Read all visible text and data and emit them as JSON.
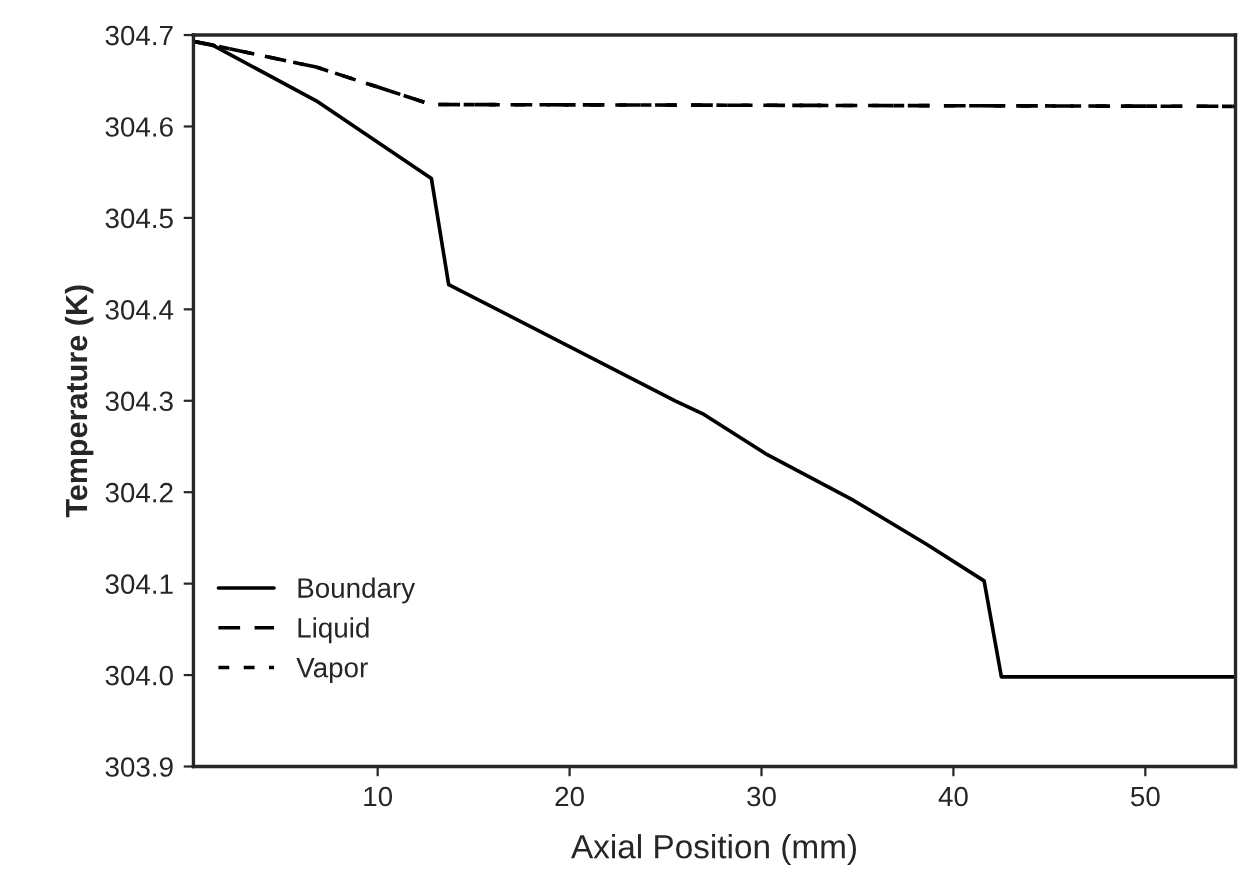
{
  "chart_data": {
    "type": "line",
    "xlabel": "Axial Position (mm)",
    "ylabel": "Temperature (K)",
    "xlim": [
      0.4,
      54.7
    ],
    "xticks": [
      10,
      20,
      30,
      40,
      50
    ],
    "ylim": [
      303.9,
      304.7
    ],
    "yticks": [
      {
        "value": 303.9,
        "label": "303.9"
      },
      {
        "value": 304.0,
        "label": "304.0"
      },
      {
        "value": 304.1,
        "label": "304.1"
      },
      {
        "value": 304.2,
        "label": "304.2"
      },
      {
        "value": 304.3,
        "label": "304.3"
      },
      {
        "value": 304.4,
        "label": "304.4"
      },
      {
        "value": 304.5,
        "label": "304.5"
      },
      {
        "value": 304.6,
        "label": "304.6"
      },
      {
        "value": 304.7,
        "label": "304.7"
      }
    ],
    "grid": false,
    "legend": "bottom left",
    "marker": "none",
    "series": [
      {
        "name": "Boundary",
        "color": "#000000",
        "line_style": "solid",
        "x": [
          0.44,
          1.4,
          6.8,
          12.8,
          13.7,
          25.5,
          27.0,
          30.3,
          34.8,
          38.6,
          41.6,
          42.5,
          54.7
        ],
        "values": [
          304.693,
          304.689,
          304.628,
          304.543,
          304.427,
          304.3,
          304.285,
          304.241,
          304.191,
          304.143,
          304.103,
          303.998,
          303.998
        ]
      },
      {
        "name": "Liquid",
        "color": "#000000",
        "line_style": "dashed",
        "x": [
          0.44,
          6.8,
          12.8,
          54.7
        ],
        "values": [
          304.693,
          304.665,
          304.624,
          304.622
        ]
      },
      {
        "name": "Vapor",
        "color": "#000000",
        "line_style": "dotted",
        "x": [
          0.44,
          6.8,
          12.8,
          54.7
        ],
        "values": [
          304.693,
          304.665,
          304.624,
          304.622
        ]
      }
    ]
  }
}
